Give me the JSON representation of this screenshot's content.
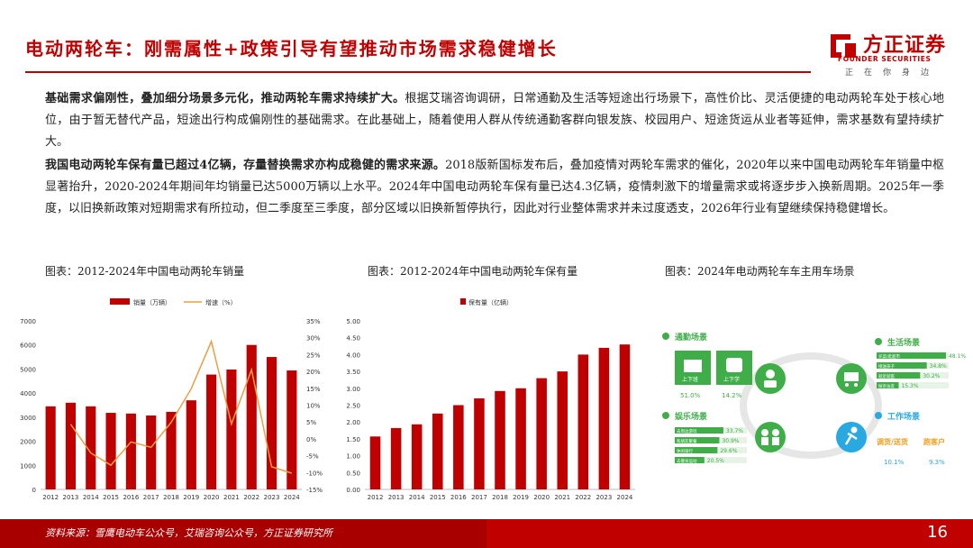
{
  "header": {
    "title": "电动两轮车：刚需属性+政策引导有望推动市场需求稳健增长",
    "brand_cn": "方正证券",
    "brand_en": "FOUNDER SECURITIES",
    "slogan": "正在你身边"
  },
  "paragraphs": [
    {
      "lead": "基础需求偏刚性，叠加细分场景多元化，推动两轮车需求持续扩大。",
      "body": "根据艾瑞咨询调研，日常通勤及生活等短途出行场景下，高性价比、灵活便捷的电动两轮车处于核心地位，由于暂无替代产品，短途出行构成偏刚性的基础需求。在此基础上，随着使用人群从传统通勤客群向银发族、校园用户、短途货运从业者等延伸，需求基数有望持续扩大。"
    },
    {
      "lead": "我国电动两轮车保有量已超过4亿辆，存量替换需求亦构成稳健的需求来源。",
      "body": "2018版新国标发布后，叠加疫情对两轮车需求的催化，2020年以来中国电动两轮车年销量中枢显著抬升，2020-2024年期间年均销量已达5000万辆以上水平。2024年中国电动两轮车保有量已达4.3亿辆，疫情刺激下的增量需求或将逐步步入换新周期。2025年一季度，以旧换新政策对短期需求有所拉动，但二季度至三季度，部分区域以旧换新暂停执行，因此对行业整体需求并未过度透支，2026年行业有望继续保持稳健增长。"
    }
  ],
  "captions": {
    "c1": "图表：2012-2024年中国电动两轮车销量",
    "c2": "图表：2012-2024年中国电动两轮车保有量",
    "c3": "图表：2024年电动两轮车车主用车场景"
  },
  "chart_data": [
    {
      "type": "bar",
      "categories": [
        "2012",
        "2013",
        "2014",
        "2015",
        "2016",
        "2017",
        "2018",
        "2019",
        "2020",
        "2021",
        "2022",
        "2023",
        "2024"
      ],
      "series": [
        {
          "name": "销量（万辆）",
          "type": "bar",
          "values": [
            3450,
            3600,
            3450,
            3180,
            3150,
            3070,
            3220,
            3700,
            4770,
            4980,
            6000,
            5500,
            4940
          ]
        },
        {
          "name": "增速（%）",
          "type": "line",
          "axis": "right",
          "values": [
            null,
            4.3,
            -4.2,
            -7.8,
            -0.9,
            -2.5,
            4.9,
            14.9,
            28.9,
            4.4,
            20.5,
            -8.3,
            -10.2
          ]
        }
      ],
      "ylim": [
        0,
        7000
      ],
      "y_ticks": [
        "0",
        "1000",
        "2000",
        "3000",
        "4000",
        "5000",
        "6000",
        "7000"
      ],
      "y2lim": [
        -15,
        35
      ],
      "y2_ticks": [
        "-15%",
        "-10%",
        "-5%",
        "0%",
        "5%",
        "10%",
        "15%",
        "20%",
        "25%",
        "30%",
        "35%"
      ],
      "colors": {
        "bar": "#c00000",
        "line": "#e8a040"
      }
    },
    {
      "type": "bar",
      "categories": [
        "2012",
        "2013",
        "2014",
        "2015",
        "2016",
        "2017",
        "2018",
        "2019",
        "2020",
        "2021",
        "2022",
        "2023",
        "2024"
      ],
      "series": [
        {
          "name": "保有量（亿辆）",
          "values": [
            1.57,
            1.82,
            1.93,
            2.25,
            2.5,
            2.7,
            2.92,
            3.0,
            3.3,
            3.5,
            4.0,
            4.2,
            4.3
          ]
        }
      ],
      "ylim": [
        0,
        5
      ],
      "y_ticks": [
        "0.00",
        "0.50",
        "1.00",
        "1.50",
        "2.00",
        "2.50",
        "3.00",
        "3.50",
        "4.00",
        "4.50",
        "5.00"
      ],
      "colors": {
        "bar": "#c00000"
      }
    }
  ],
  "scenes": {
    "commute": {
      "title": "通勤场景",
      "items": [
        {
          "label": "上下班",
          "value": "51.0%"
        },
        {
          "label": "上下学",
          "value": "14.2%"
        }
      ]
    },
    "life": {
      "title": "生活场景",
      "rows": [
        {
          "label": "买菜/逛超市",
          "value": "48.1%",
          "pct": 48.1
        },
        {
          "label": "接送孩子",
          "value": "34.8%",
          "pct": 34.8
        },
        {
          "label": "就近就医",
          "value": "30.2%",
          "pct": 30.2
        },
        {
          "label": "探亲访友",
          "value": "15.3%",
          "pct": 15.3
        }
      ]
    },
    "leisure": {
      "title": "娱乐场景",
      "rows": [
        {
          "label": "去周边游玩",
          "value": "33.7%",
          "pct": 33.7
        },
        {
          "label": "和朋友聚餐",
          "value": "30.9%",
          "pct": 30.9
        },
        {
          "label": "休闲骑行",
          "value": "29.6%",
          "pct": 29.6
        },
        {
          "label": "去健身运动",
          "value": "20.5%",
          "pct": 20.5
        }
      ]
    },
    "work": {
      "title": "工作场景",
      "items": [
        {
          "label": "调货/送货",
          "value": "10.1%"
        },
        {
          "label": "跑客户",
          "value": "9.3%"
        }
      ]
    }
  },
  "footer": {
    "source": "资料来源：雪鹰电动车公众号，艾瑞咨询公众号，方正证券研究所",
    "page": "16"
  }
}
